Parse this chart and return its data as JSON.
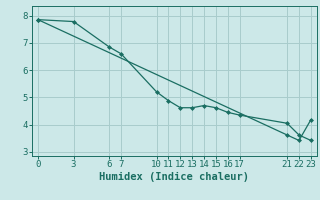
{
  "xlabel": "Humidex (Indice chaleur)",
  "ylabel": "",
  "bg_color": "#cce8e8",
  "grid_color": "#a8cccc",
  "line_color": "#1a6e62",
  "marker_color": "#1a6e62",
  "line1_x": [
    0,
    3,
    6,
    7,
    10,
    11,
    12,
    13,
    14,
    15,
    16,
    17,
    21,
    22,
    23
  ],
  "line1_y": [
    7.85,
    7.78,
    6.85,
    6.6,
    5.2,
    4.88,
    4.62,
    4.62,
    4.7,
    4.62,
    4.45,
    4.35,
    4.05,
    3.62,
    3.42
  ],
  "line2_x": [
    0,
    21,
    22,
    23
  ],
  "line2_y": [
    7.85,
    3.62,
    3.42,
    4.18
  ],
  "xlim": [
    -0.5,
    23.5
  ],
  "ylim": [
    2.85,
    8.35
  ],
  "xticks": [
    0,
    3,
    6,
    7,
    10,
    11,
    12,
    13,
    14,
    15,
    16,
    17,
    21,
    22,
    23
  ],
  "yticks": [
    3,
    4,
    5,
    6,
    7,
    8
  ],
  "tick_fontsize": 6.5,
  "label_fontsize": 7.5
}
